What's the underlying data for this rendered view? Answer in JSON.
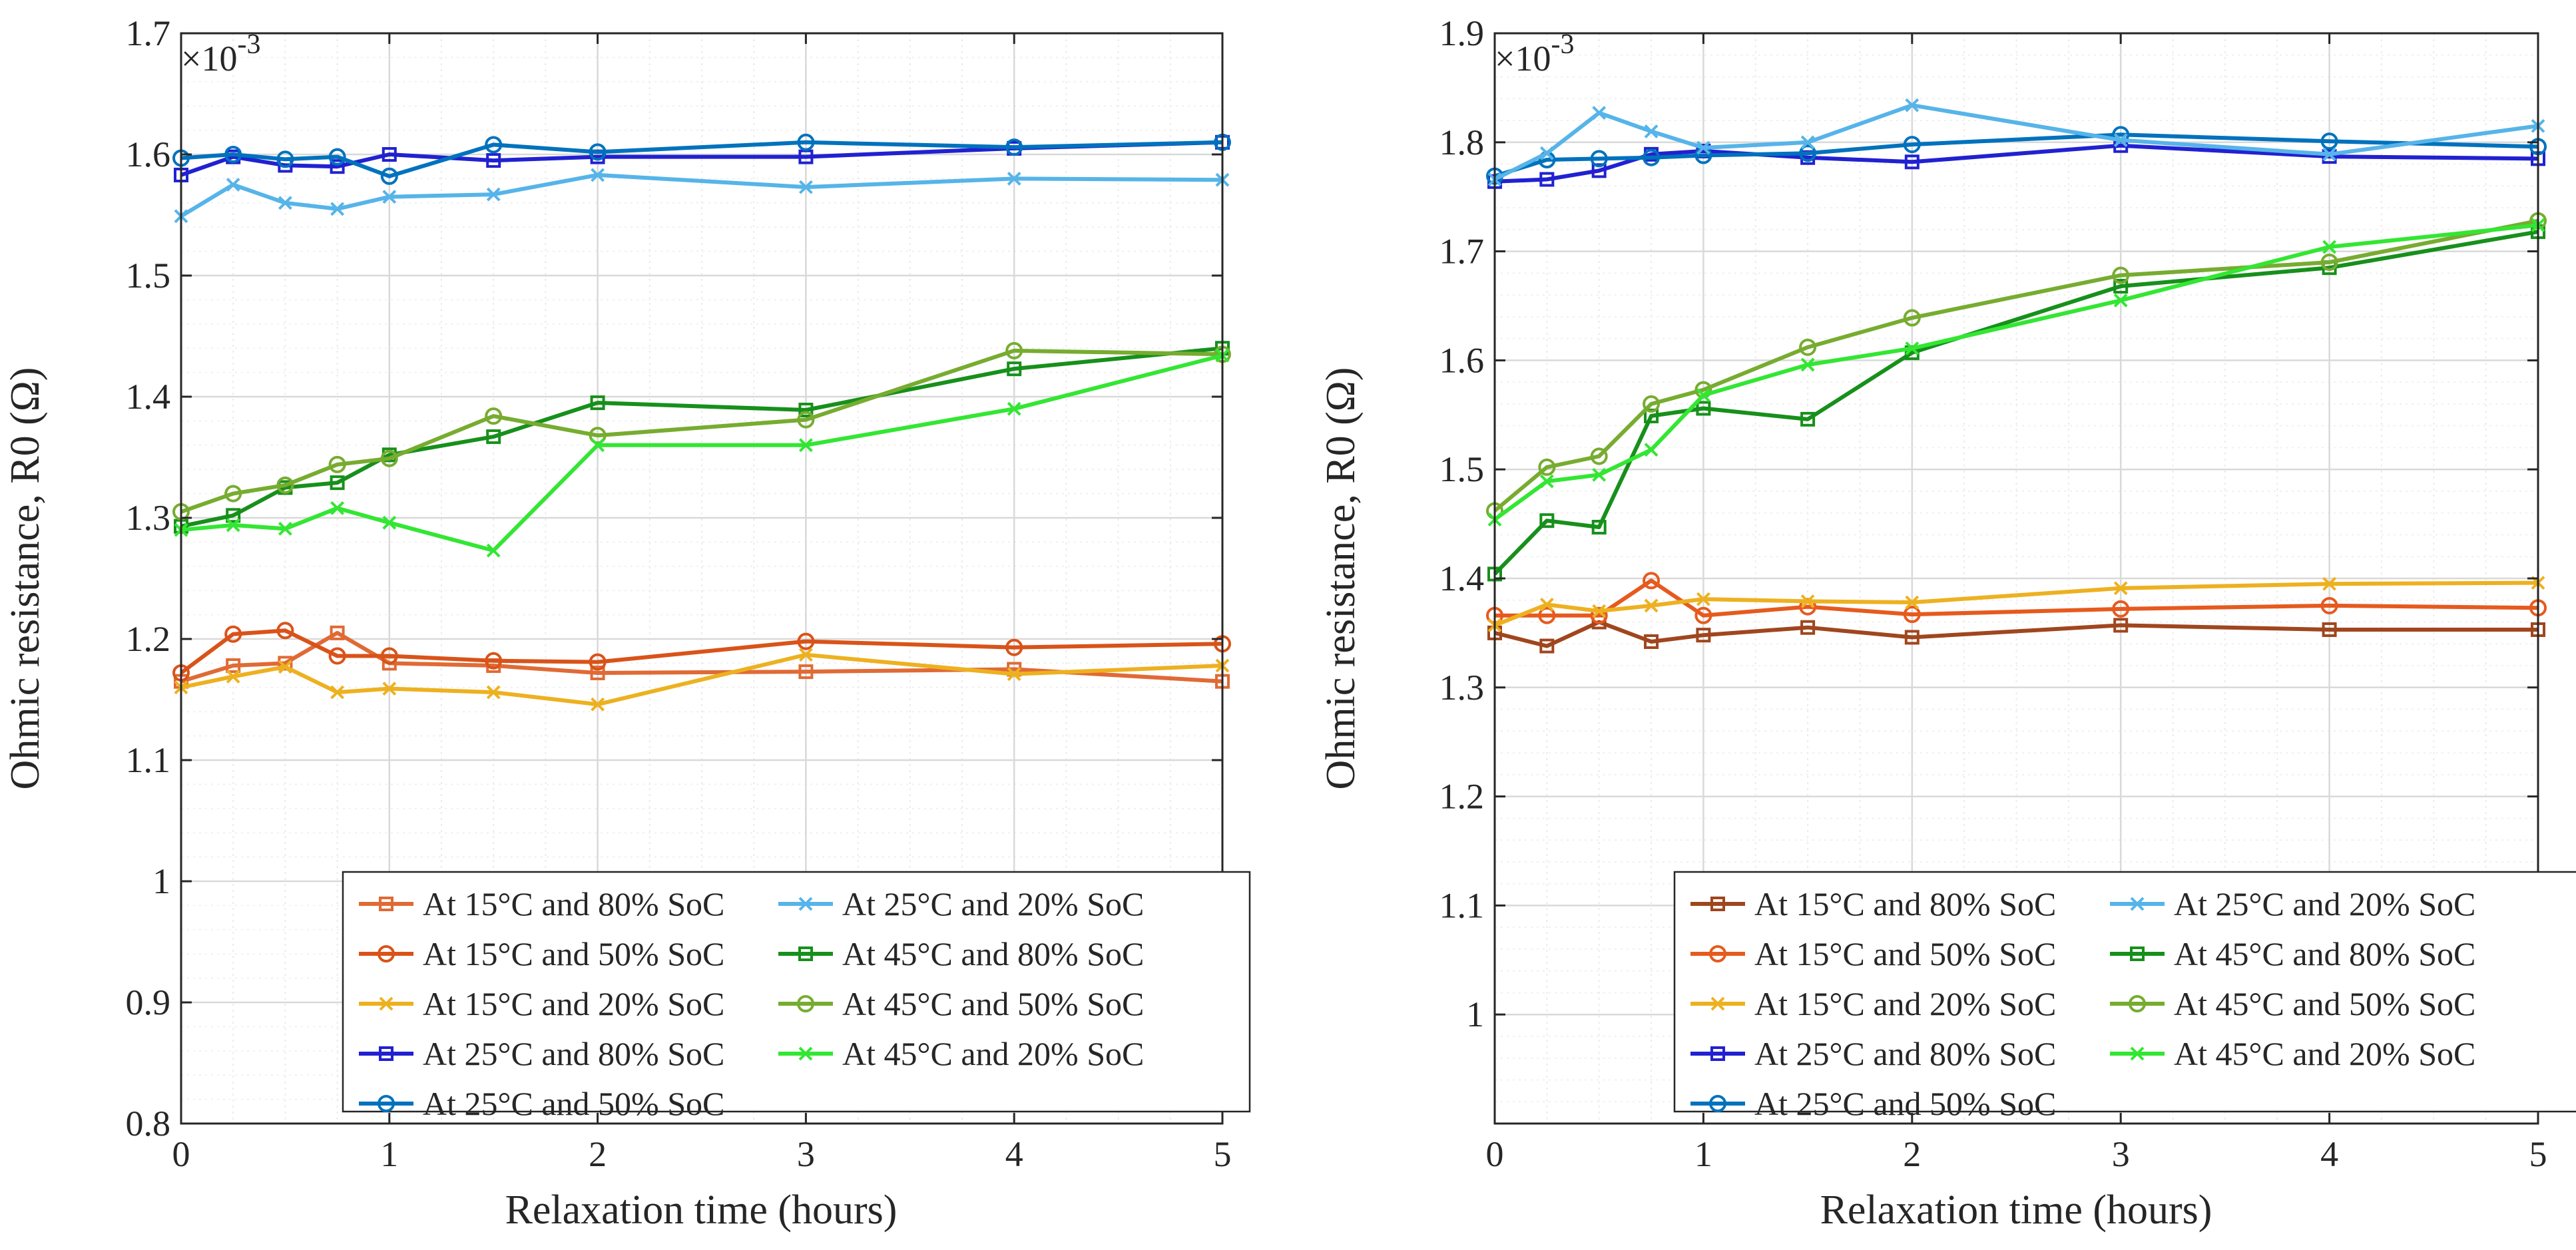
{
  "chart_data": [
    {
      "type": "line",
      "xlabel": "Relaxation time (hours)",
      "ylabel": "Ohmic resistance, R0 (Ω)",
      "multiplier_base": "×10",
      "multiplier_exp": "-3",
      "xlim": [
        0,
        5
      ],
      "ylim": [
        0.8,
        1.7
      ],
      "xticks": [
        0,
        1,
        2,
        3,
        4,
        5
      ],
      "yticks": [
        0.8,
        0.9,
        1,
        1.1,
        1.2,
        1.3,
        1.4,
        1.5,
        1.6,
        1.7
      ],
      "xtick_labels": [
        "0",
        "1",
        "2",
        "3",
        "4",
        "5"
      ],
      "ytick_labels": [
        "0.8",
        "0.9",
        "1",
        "1.1",
        "1.2",
        "1.3",
        "1.4",
        "1.5",
        "1.6",
        "1.7"
      ],
      "grid": true,
      "legend_position": "bottom-right",
      "x": [
        0,
        0.25,
        0.5,
        0.75,
        1,
        1.5,
        2,
        3,
        4,
        5
      ],
      "series": [
        {
          "name": "At 15°C and 80% SoC",
          "color": "#E06A35",
          "marker": "square",
          "values": [
            1.165,
            1.178,
            1.18,
            1.205,
            1.18,
            1.178,
            1.172,
            1.173,
            1.175,
            1.165
          ]
        },
        {
          "name": "At 15°C and 50% SoC",
          "color": "#D95319",
          "marker": "circle",
          "values": [
            1.172,
            1.204,
            1.207,
            1.186,
            1.186,
            1.182,
            1.181,
            1.198,
            1.193,
            1.196
          ]
        },
        {
          "name": "At 15°C and 20% SoC",
          "color": "#EDB120",
          "marker": "x",
          "values": [
            1.16,
            1.169,
            1.177,
            1.156,
            1.159,
            1.156,
            1.146,
            1.187,
            1.171,
            1.178
          ]
        },
        {
          "name": "At 25°C and 80% SoC",
          "color": "#2121D1",
          "marker": "square",
          "values": [
            1.583,
            1.598,
            1.591,
            1.59,
            1.6,
            1.595,
            1.598,
            1.598,
            1.605,
            1.61
          ]
        },
        {
          "name": "At 25°C and 50% SoC",
          "color": "#0072BD",
          "marker": "circle",
          "values": [
            1.597,
            1.6,
            1.596,
            1.598,
            1.582,
            1.608,
            1.602,
            1.61,
            1.606,
            1.61
          ]
        },
        {
          "name": "At 25°C and 20% SoC",
          "color": "#56B4E9",
          "marker": "x",
          "values": [
            1.549,
            1.575,
            1.56,
            1.555,
            1.565,
            1.567,
            1.583,
            1.573,
            1.58,
            1.579
          ]
        },
        {
          "name": "At 45°C and 80% SoC",
          "color": "#17901B",
          "marker": "square",
          "values": [
            1.293,
            1.302,
            1.325,
            1.329,
            1.352,
            1.367,
            1.395,
            1.389,
            1.423,
            1.44
          ]
        },
        {
          "name": "At 45°C and 50% SoC",
          "color": "#77AC30",
          "marker": "circle",
          "values": [
            1.305,
            1.32,
            1.327,
            1.344,
            1.349,
            1.384,
            1.368,
            1.381,
            1.438,
            1.435
          ]
        },
        {
          "name": "At 45°C and 20% SoC",
          "color": "#33E633",
          "marker": "x",
          "values": [
            1.29,
            1.294,
            1.291,
            1.308,
            1.296,
            1.273,
            1.36,
            1.36,
            1.39,
            1.434
          ]
        }
      ]
    },
    {
      "type": "line",
      "xlabel": "Relaxation time (hours)",
      "ylabel": "Ohmic resistance, R0 (Ω)",
      "multiplier_base": "×10",
      "multiplier_exp": "-3",
      "xlim": [
        0,
        5
      ],
      "ylim": [
        0.9,
        1.9
      ],
      "xticks": [
        0,
        1,
        2,
        3,
        4,
        5
      ],
      "yticks": [
        1,
        1.1,
        1.2,
        1.3,
        1.4,
        1.5,
        1.6,
        1.7,
        1.8,
        1.9
      ],
      "xtick_labels": [
        "0",
        "1",
        "2",
        "3",
        "4",
        "5"
      ],
      "ytick_labels": [
        "1",
        "1.1",
        "1.2",
        "1.3",
        "1.4",
        "1.5",
        "1.6",
        "1.7",
        "1.8",
        "1.9"
      ],
      "grid": true,
      "legend_position": "bottom-right",
      "x": [
        0,
        0.25,
        0.5,
        0.75,
        1,
        1.5,
        2,
        3,
        4,
        5
      ],
      "series": [
        {
          "name": "At 15°C and 80% SoC",
          "color": "#A0461E",
          "marker": "square",
          "values": [
            1.35,
            1.338,
            1.36,
            1.342,
            1.348,
            1.355,
            1.346,
            1.357,
            1.353,
            1.353
          ]
        },
        {
          "name": "At 15°C and 50% SoC",
          "color": "#E65A1E",
          "marker": "circle",
          "values": [
            1.366,
            1.366,
            1.366,
            1.398,
            1.366,
            1.374,
            1.367,
            1.372,
            1.375,
            1.373
          ]
        },
        {
          "name": "At 15°C and 20% SoC",
          "color": "#EDB120",
          "marker": "x",
          "values": [
            1.357,
            1.376,
            1.37,
            1.375,
            1.381,
            1.379,
            1.378,
            1.391,
            1.395,
            1.396
          ]
        },
        {
          "name": "At 25°C and 80% SoC",
          "color": "#2121D1",
          "marker": "square",
          "values": [
            1.764,
            1.766,
            1.774,
            1.789,
            1.792,
            1.786,
            1.782,
            1.797,
            1.787,
            1.785
          ]
        },
        {
          "name": "At 25°C and 50% SoC",
          "color": "#0072BD",
          "marker": "circle",
          "values": [
            1.769,
            1.784,
            1.785,
            1.786,
            1.788,
            1.79,
            1.798,
            1.807,
            1.801,
            1.796
          ]
        },
        {
          "name": "At 25°C and 20% SoC",
          "color": "#56B4E9",
          "marker": "x",
          "values": [
            1.766,
            1.79,
            1.827,
            1.81,
            1.795,
            1.8,
            1.834,
            1.802,
            1.789,
            1.815
          ]
        },
        {
          "name": "At 45°C and 80% SoC",
          "color": "#17901B",
          "marker": "square",
          "values": [
            1.404,
            1.453,
            1.447,
            1.549,
            1.556,
            1.546,
            1.607,
            1.668,
            1.685,
            1.718
          ]
        },
        {
          "name": "At 45°C and 50% SoC",
          "color": "#77AC30",
          "marker": "circle",
          "values": [
            1.462,
            1.502,
            1.512,
            1.56,
            1.573,
            1.612,
            1.639,
            1.678,
            1.69,
            1.728
          ]
        },
        {
          "name": "At 45°C and 20% SoC",
          "color": "#33E633",
          "marker": "x",
          "values": [
            1.454,
            1.489,
            1.495,
            1.518,
            1.568,
            1.596,
            1.611,
            1.655,
            1.704,
            1.724
          ]
        }
      ]
    }
  ]
}
